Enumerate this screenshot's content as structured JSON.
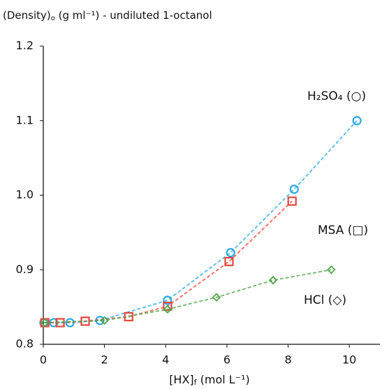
{
  "chart_data": {
    "type": "line",
    "title": [
      "(Density)",
      "o",
      " (g ml⁻¹) - undiluted 1-octanol"
    ],
    "x_label": [
      "[HX]",
      "f",
      " (mol L⁻¹)"
    ],
    "xlim": [
      0,
      11
    ],
    "xticks": [
      0,
      2,
      4,
      6,
      8,
      10
    ],
    "ylim": [
      0.8,
      1.2
    ],
    "yticks": [
      {
        "value": 0.8,
        "label": "0.8"
      },
      0.9,
      {
        "value": 1,
        "label": "1.0"
      },
      1.1,
      {
        "value": 1.2,
        "label": "1.2"
      }
    ],
    "grid": false,
    "series": [
      {
        "name": "H₂SO₄ (○)",
        "color": "#29a9e1",
        "marker": "circle",
        "x": [
          0.02,
          0.34,
          0.87,
          1.85,
          4.06,
          6.12,
          8.2,
          10.25
        ],
        "values": [
          0.829,
          0.829,
          0.829,
          0.832,
          0.859,
          0.923,
          1.008,
          1.1
        ]
      },
      {
        "name": "MSA (□)",
        "color": "#e8453c",
        "marker": "square",
        "x": [
          0.05,
          0.55,
          1.37,
          2.79,
          4.06,
          6.07,
          8.13
        ],
        "values": [
          0.829,
          0.829,
          0.831,
          0.837,
          0.851,
          0.911,
          0.992
        ]
      },
      {
        "name": "HCl (◇)",
        "color": "#4ea64a",
        "marker": "diamond",
        "x": [
          0.05,
          2.0,
          4.06,
          5.66,
          7.51,
          9.41
        ],
        "values": [
          0.829,
          0.832,
          0.847,
          0.863,
          0.886,
          0.9
        ]
      }
    ]
  }
}
